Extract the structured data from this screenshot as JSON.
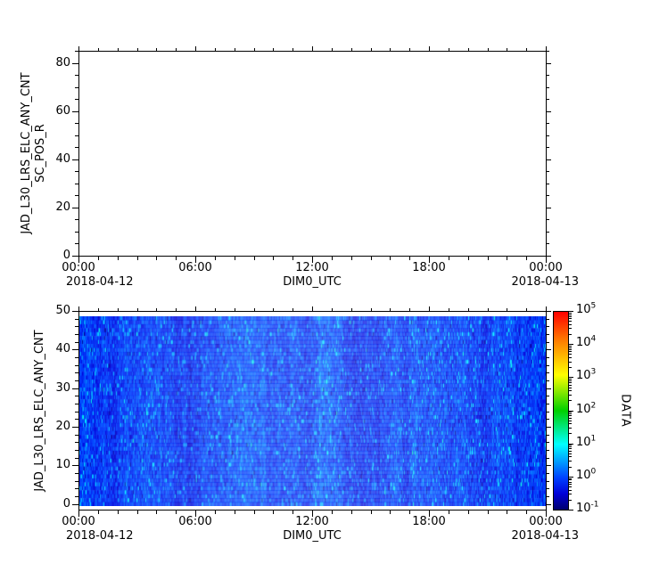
{
  "figure": {
    "background": "#ffffff",
    "text_color": "#000000",
    "axis_color": "#000000"
  },
  "chart_data": [
    {
      "type": "line",
      "panel": "top",
      "title": "",
      "ylabel_line1": "JAD_L30_LRS_ELC_ANY_CNT",
      "ylabel_line2": "SC_POS_R",
      "xlabel": "DIM0_UTC",
      "x_date_start": "2018-04-12",
      "x_date_end": "2018-04-13",
      "xticks": {
        "labels": [
          "00:00",
          "06:00",
          "12:00",
          "18:00",
          "00:00"
        ],
        "fractions": [
          0,
          0.25,
          0.5,
          0.75,
          1
        ]
      },
      "x_minor_count": 24,
      "ylim": [
        0,
        85
      ],
      "yticks": [
        0,
        20,
        40,
        60,
        80
      ],
      "y_minor_step": 5,
      "series": []
    },
    {
      "type": "heatmap",
      "panel": "bottom",
      "ylabel": "JAD_L30_LRS_ELC_ANY_CNT",
      "xlabel": "DIM0_UTC",
      "x_date_start": "2018-04-12",
      "x_date_end": "2018-04-13",
      "xticks": {
        "labels": [
          "00:00",
          "06:00",
          "12:00",
          "18:00",
          "00:00"
        ],
        "fractions": [
          0,
          0.25,
          0.5,
          0.75,
          1
        ]
      },
      "x_minor_count": 24,
      "ylim": [
        -1.5,
        50
      ],
      "yticks": [
        0,
        10,
        20,
        30,
        40,
        50
      ],
      "y_minor_step": 2,
      "y_extent": [
        -0.5,
        48.5
      ],
      "value_scale": "log",
      "value_range_log10": [
        -1,
        5
      ],
      "dominant_value_log10": -0.1,
      "noise": {
        "seed": 20180412,
        "cols": 524,
        "rows": 48,
        "base_log10": -0.1,
        "cell_spread": 0.45,
        "col_ar": 0.86,
        "col_step": 0.16,
        "bright_prob": 0.07,
        "bright_min": 0.45,
        "bright_span": 0.5,
        "dark_prob": 0.015,
        "dark_log10": -0.85,
        "dark_span": 0.25
      },
      "colorbar": {
        "label": "DATA",
        "exponents": [
          5,
          4,
          3,
          2,
          1,
          0,
          -1
        ],
        "range_log10": [
          -1,
          5
        ],
        "stops": [
          {
            "t": 0.0,
            "color": "#00006e"
          },
          {
            "t": 0.08,
            "color": "#0000d8"
          },
          {
            "t": 0.16,
            "color": "#0040ff"
          },
          {
            "t": 0.33,
            "color": "#00ffff"
          },
          {
            "t": 0.5,
            "color": "#00d000"
          },
          {
            "t": 0.68,
            "color": "#ffff00"
          },
          {
            "t": 0.85,
            "color": "#ff8000"
          },
          {
            "t": 1.0,
            "color": "#ff0000"
          }
        ]
      }
    }
  ]
}
